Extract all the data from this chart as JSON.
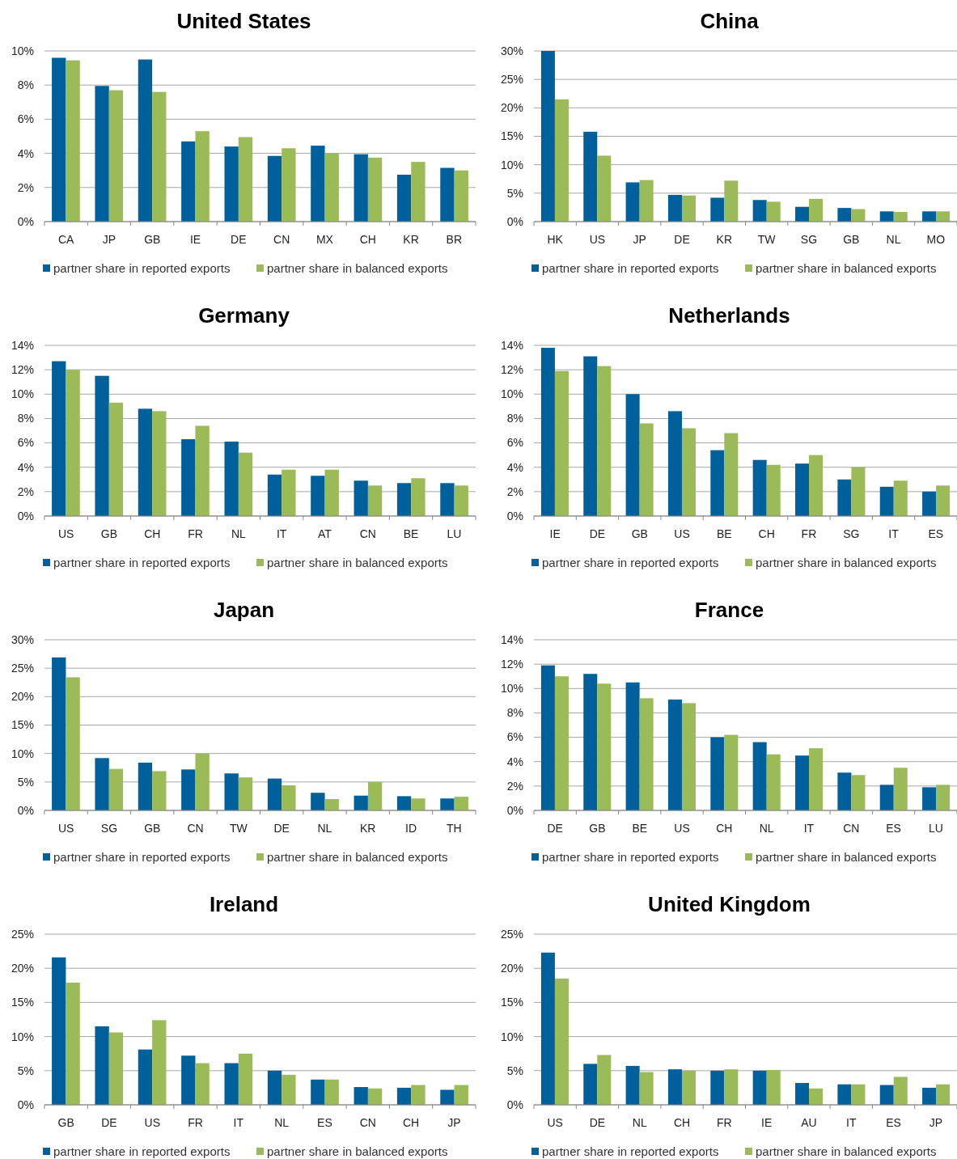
{
  "chart_data": [
    {
      "type": "bar",
      "title": "United States",
      "categories": [
        "CA",
        "JP",
        "GB",
        "IE",
        "DE",
        "CN",
        "MX",
        "CH",
        "KR",
        "BR"
      ],
      "series": [
        {
          "name": "partner share in reported exports",
          "color": "#00609c",
          "values": [
            9.6,
            7.95,
            9.5,
            4.7,
            4.4,
            3.85,
            4.45,
            3.95,
            2.75,
            3.15
          ]
        },
        {
          "name": "partner share in balanced exports",
          "color": "#9bbb59",
          "values": [
            9.45,
            7.7,
            7.6,
            5.3,
            4.95,
            4.3,
            4.0,
            3.75,
            3.5,
            3.0
          ]
        }
      ],
      "ylim": [
        0,
        10
      ],
      "yticks": [
        {
          "value": 0,
          "label": "0%"
        },
        {
          "value": 2,
          "label": "2%"
        },
        {
          "value": 4,
          "label": "4%"
        },
        {
          "value": 6,
          "label": "6%"
        },
        {
          "value": 8,
          "label": "8%"
        },
        {
          "value": 10,
          "label": "10%"
        }
      ],
      "grid": "y",
      "legend": "bottom"
    },
    {
      "type": "bar",
      "title": "China",
      "categories": [
        "HK",
        "US",
        "JP",
        "DE",
        "KR",
        "TW",
        "SG",
        "GB",
        "NL",
        "MO"
      ],
      "series": [
        {
          "name": "partner share in reported exports",
          "color": "#00609c",
          "values": [
            30,
            15.8,
            6.9,
            4.7,
            4.2,
            3.8,
            2.6,
            2.4,
            1.8,
            1.8
          ]
        },
        {
          "name": "partner share in balanced exports",
          "color": "#9bbb59",
          "values": [
            21.5,
            11.6,
            7.3,
            4.6,
            7.2,
            3.5,
            4.0,
            2.2,
            1.7,
            1.8
          ]
        }
      ],
      "ylim": [
        0,
        30
      ],
      "yticks": [
        {
          "value": 0,
          "label": "0%"
        },
        {
          "value": 5,
          "label": "5%"
        },
        {
          "value": 10,
          "label": "10%"
        },
        {
          "value": 15,
          "label": "15%"
        },
        {
          "value": 20,
          "label": "20%"
        },
        {
          "value": 25,
          "label": "25%"
        },
        {
          "value": 30,
          "label": "30%"
        }
      ],
      "grid": "y",
      "legend": "bottom"
    },
    {
      "type": "bar",
      "title": "Germany",
      "categories": [
        "US",
        "GB",
        "CH",
        "FR",
        "NL",
        "IT",
        "AT",
        "CN",
        "BE",
        "LU"
      ],
      "series": [
        {
          "name": "partner share in reported exports",
          "color": "#00609c",
          "values": [
            12.7,
            11.5,
            8.8,
            6.3,
            6.1,
            3.4,
            3.3,
            2.9,
            2.7,
            2.7
          ]
        },
        {
          "name": "partner share in balanced exports",
          "color": "#9bbb59",
          "values": [
            12.0,
            9.3,
            8.6,
            7.4,
            5.2,
            3.8,
            3.8,
            2.5,
            3.1,
            2.5
          ]
        }
      ],
      "ylim": [
        0,
        14
      ],
      "yticks": [
        {
          "value": 0,
          "label": "0%"
        },
        {
          "value": 2,
          "label": "2%"
        },
        {
          "value": 4,
          "label": "4%"
        },
        {
          "value": 6,
          "label": "6%"
        },
        {
          "value": 8,
          "label": "8%"
        },
        {
          "value": 10,
          "label": "10%"
        },
        {
          "value": 12,
          "label": "12%"
        },
        {
          "value": 14,
          "label": "14%"
        }
      ],
      "grid": "y",
      "legend": "bottom"
    },
    {
      "type": "bar",
      "title": "Netherlands",
      "categories": [
        "IE",
        "DE",
        "GB",
        "US",
        "BE",
        "CH",
        "FR",
        "SG",
        "IT",
        "ES"
      ],
      "series": [
        {
          "name": "partner share in reported exports",
          "color": "#00609c",
          "values": [
            13.8,
            13.1,
            10.0,
            8.6,
            5.4,
            4.6,
            4.3,
            3.0,
            2.4,
            2.0
          ]
        },
        {
          "name": "partner share in balanced exports",
          "color": "#9bbb59",
          "values": [
            11.9,
            12.3,
            7.6,
            7.2,
            6.8,
            4.2,
            5.0,
            4.0,
            2.9,
            2.5
          ]
        }
      ],
      "ylim": [
        0,
        14
      ],
      "yticks": [
        {
          "value": 0,
          "label": "0%"
        },
        {
          "value": 2,
          "label": "2%"
        },
        {
          "value": 4,
          "label": "4%"
        },
        {
          "value": 6,
          "label": "6%"
        },
        {
          "value": 8,
          "label": "8%"
        },
        {
          "value": 10,
          "label": "10%"
        },
        {
          "value": 12,
          "label": "12%"
        },
        {
          "value": 14,
          "label": "14%"
        }
      ],
      "grid": "y",
      "legend": "bottom"
    },
    {
      "type": "bar",
      "title": "Japan",
      "categories": [
        "US",
        "SG",
        "GB",
        "CN",
        "TW",
        "DE",
        "NL",
        "KR",
        "ID",
        "TH"
      ],
      "series": [
        {
          "name": "partner share in reported exports",
          "color": "#00609c",
          "values": [
            26.9,
            9.2,
            8.4,
            7.2,
            6.5,
            5.6,
            3.1,
            2.6,
            2.5,
            2.1
          ]
        },
        {
          "name": "partner share in balanced exports",
          "color": "#9bbb59",
          "values": [
            23.4,
            7.3,
            6.9,
            10.0,
            5.8,
            4.4,
            2.0,
            5.0,
            2.1,
            2.4
          ]
        }
      ],
      "ylim": [
        0,
        30
      ],
      "yticks": [
        {
          "value": 0,
          "label": "0%"
        },
        {
          "value": 5,
          "label": "5%"
        },
        {
          "value": 10,
          "label": "10%"
        },
        {
          "value": 15,
          "label": "15%"
        },
        {
          "value": 20,
          "label": "20%"
        },
        {
          "value": 25,
          "label": "25%"
        },
        {
          "value": 30,
          "label": "30%"
        }
      ],
      "grid": "y",
      "legend": "bottom"
    },
    {
      "type": "bar",
      "title": "France",
      "categories": [
        "DE",
        "GB",
        "BE",
        "US",
        "CH",
        "NL",
        "IT",
        "CN",
        "ES",
        "LU"
      ],
      "series": [
        {
          "name": "partner share in reported exports",
          "color": "#00609c",
          "values": [
            11.9,
            11.2,
            10.5,
            9.1,
            6.0,
            5.6,
            4.5,
            3.1,
            2.1,
            1.9
          ]
        },
        {
          "name": "partner share in balanced exports",
          "color": "#9bbb59",
          "values": [
            11.0,
            10.4,
            9.2,
            8.8,
            6.2,
            4.6,
            5.1,
            2.9,
            3.5,
            2.1
          ]
        }
      ],
      "ylim": [
        0,
        14
      ],
      "yticks": [
        {
          "value": 0,
          "label": "0%"
        },
        {
          "value": 2,
          "label": "2%"
        },
        {
          "value": 4,
          "label": "4%"
        },
        {
          "value": 6,
          "label": "6%"
        },
        {
          "value": 8,
          "label": "8%"
        },
        {
          "value": 10,
          "label": "10%"
        },
        {
          "value": 12,
          "label": "12%"
        },
        {
          "value": 14,
          "label": "14%"
        }
      ],
      "grid": "y",
      "legend": "bottom"
    },
    {
      "type": "bar",
      "title": "Ireland",
      "categories": [
        "GB",
        "DE",
        "US",
        "FR",
        "IT",
        "NL",
        "ES",
        "CN",
        "CH",
        "JP"
      ],
      "series": [
        {
          "name": "partner share in reported exports",
          "color": "#00609c",
          "values": [
            21.6,
            11.5,
            8.1,
            7.2,
            6.1,
            5.0,
            3.7,
            2.6,
            2.5,
            2.2
          ]
        },
        {
          "name": "partner share in balanced exports",
          "color": "#9bbb59",
          "values": [
            17.9,
            10.6,
            12.4,
            6.1,
            7.5,
            4.4,
            3.7,
            2.4,
            2.9,
            2.9
          ]
        }
      ],
      "ylim": [
        0,
        25
      ],
      "yticks": [
        {
          "value": 0,
          "label": "0%"
        },
        {
          "value": 5,
          "label": "5%"
        },
        {
          "value": 10,
          "label": "10%"
        },
        {
          "value": 15,
          "label": "15%"
        },
        {
          "value": 20,
          "label": "20%"
        },
        {
          "value": 25,
          "label": "25%"
        }
      ],
      "grid": "y",
      "legend": "bottom"
    },
    {
      "type": "bar",
      "title": "United Kingdom",
      "categories": [
        "US",
        "DE",
        "NL",
        "CH",
        "FR",
        "IE",
        "AU",
        "IT",
        "ES",
        "JP"
      ],
      "series": [
        {
          "name": "partner share in reported exports",
          "color": "#00609c",
          "values": [
            22.3,
            6.0,
            5.7,
            5.2,
            5.0,
            5.0,
            3.2,
            3.0,
            2.9,
            2.5
          ]
        },
        {
          "name": "partner share in balanced exports",
          "color": "#9bbb59",
          "values": [
            18.5,
            7.3,
            4.8,
            5.0,
            5.2,
            5.1,
            2.4,
            3.0,
            4.1,
            3.0
          ]
        }
      ],
      "ylim": [
        0,
        25
      ],
      "yticks": [
        {
          "value": 0,
          "label": "0%"
        },
        {
          "value": 5,
          "label": "5%"
        },
        {
          "value": 10,
          "label": "10%"
        },
        {
          "value": 15,
          "label": "15%"
        },
        {
          "value": 20,
          "label": "20%"
        },
        {
          "value": 25,
          "label": "25%"
        }
      ],
      "grid": "y",
      "legend": "bottom"
    }
  ]
}
